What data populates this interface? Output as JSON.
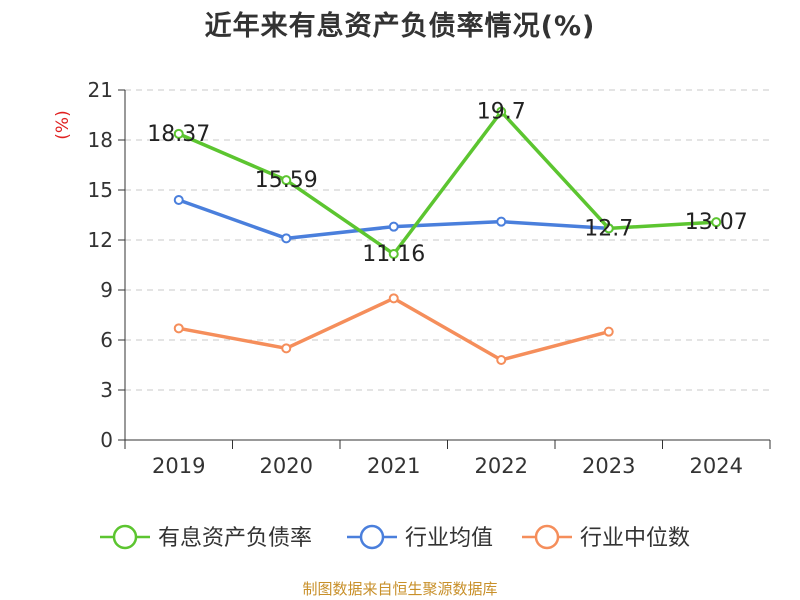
{
  "chart_data": {
    "type": "line",
    "title": "近年来有息资产负债率情况(%)",
    "ylabel": "(%)",
    "xlabel": "",
    "categories": [
      "2019",
      "2020",
      "2021",
      "2022",
      "2023",
      "2024"
    ],
    "ylim": [
      0,
      21
    ],
    "yticks": [
      0,
      3,
      6,
      9,
      12,
      15,
      18,
      21
    ],
    "grid": true,
    "legend_position": "bottom",
    "series": [
      {
        "name": "有息资产负债率",
        "color": "#5cc530",
        "values": [
          18.37,
          15.59,
          11.16,
          19.7,
          12.7,
          13.07
        ],
        "labels": [
          "18.37",
          "15.59",
          "11.16",
          "19.7",
          "12.7",
          "13.07"
        ]
      },
      {
        "name": "行业均值",
        "color": "#4a7fdc",
        "values": [
          14.4,
          12.1,
          12.8,
          13.1,
          12.7,
          null
        ]
      },
      {
        "name": "行业中位数",
        "color": "#f58e5b",
        "values": [
          6.7,
          5.5,
          8.5,
          4.8,
          6.5,
          null
        ]
      }
    ]
  },
  "source": "制图数据来自恒生聚源数据库"
}
